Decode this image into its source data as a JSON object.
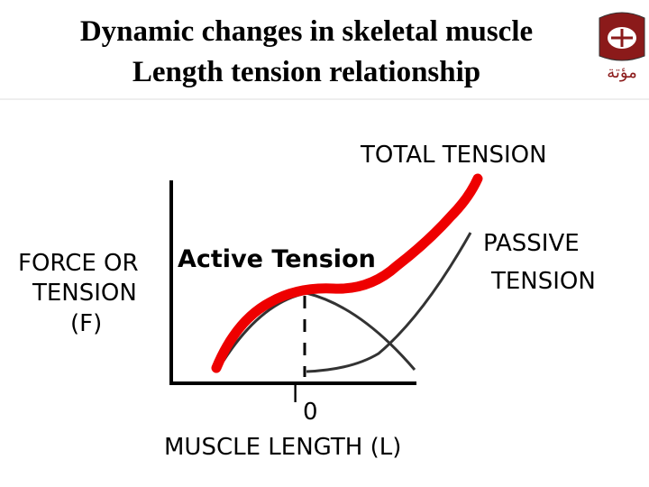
{
  "header": {
    "title_line1": "Dynamic changes in skeletal muscle",
    "title_line2": "Length tension relationship",
    "logo_text": "مؤتة"
  },
  "diagram": {
    "total_label": "TOTAL TENSION",
    "passive_label_1": "PASSIVE",
    "passive_label_2": "TENSION",
    "y_label_1": "FORCE OR",
    "y_label_2": "TENSION",
    "y_label_3": "(F)",
    "active_label": "Active Tension",
    "l0_letter": "l",
    "l0_sub": "0",
    "x_label": "MUSCLE LENGTH (L)"
  }
}
